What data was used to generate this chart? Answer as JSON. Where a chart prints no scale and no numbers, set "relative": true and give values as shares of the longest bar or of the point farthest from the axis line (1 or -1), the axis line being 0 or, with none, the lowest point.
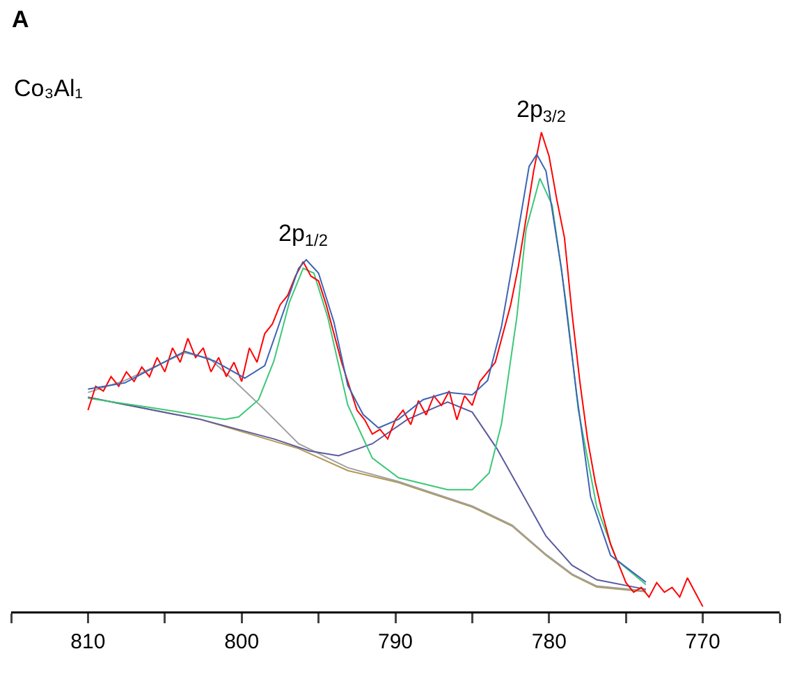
{
  "chart_data": {
    "type": "line",
    "title": "A",
    "relative": true,
    "grid": false,
    "marker": "none",
    "line_style": "solid",
    "xlim": [
      815,
      765
    ],
    "xticks": [
      {
        "value": 815,
        "label": null
      },
      810,
      {
        "value": 805,
        "label": null
      },
      800,
      {
        "value": 795,
        "label": null
      },
      790,
      {
        "value": 785,
        "label": null
      },
      780,
      {
        "value": 775,
        "label": null
      },
      770,
      {
        "value": 765,
        "label": null
      }
    ],
    "annotations": [
      "Co₃Al₁",
      {
        "text": "2p$_{1/2}$",
        "x": 796,
        "y": 0.74
      },
      {
        "text": "2p$_{3/2}$",
        "x": 780.5,
        "y": 1.0
      }
    ],
    "series": [
      {
        "color": "#b09850",
        "x": [
          810,
          802.7,
          796.3,
          793.1,
          789.8,
          785,
          782.4,
          780.2,
          778.5,
          776.9,
          773.7
        ],
        "values": [
          0.447,
          0.401,
          0.34,
          0.294,
          0.269,
          0.218,
          0.178,
          0.117,
          0.076,
          0.051,
          0.041
        ]
      },
      {
        "color": "#a0a0a0",
        "x": [
          810,
          807.6,
          803.7,
          802.1,
          800.5,
          798.5,
          796.3,
          793.1,
          789.8,
          785,
          782.4,
          780.2,
          778.5,
          776.9,
          773.7
        ],
        "values": [
          0.457,
          0.482,
          0.54,
          0.528,
          0.482,
          0.421,
          0.35,
          0.3,
          0.271,
          0.22,
          0.18,
          0.119,
          0.078,
          0.053,
          0.043
        ]
      },
      {
        "color": "#5a5aa0",
        "x": [
          810,
          802.7,
          797.9,
          795.6,
          793.7,
          791.5,
          789.2,
          786.6,
          785,
          783.4,
          781.8,
          780.2,
          778.5,
          776.9,
          773.7
        ],
        "values": [
          0.447,
          0.401,
          0.36,
          0.335,
          0.325,
          0.35,
          0.401,
          0.437,
          0.416,
          0.34,
          0.249,
          0.157,
          0.096,
          0.066,
          0.046
        ]
      },
      {
        "color": "#3cc878",
        "x": [
          810,
          806,
          802.7,
          801.1,
          800.2,
          798.9,
          797.9,
          796.9,
          796,
          795.3,
          794.4,
          793.1,
          791.5,
          789.8,
          786.6,
          785,
          783.9,
          783.1,
          782.1,
          781.5,
          780.6,
          779.8,
          778.9,
          778.1,
          776.9,
          775.6,
          773.7
        ],
        "values": [
          0.445,
          0.426,
          0.409,
          0.401,
          0.406,
          0.442,
          0.523,
          0.645,
          0.716,
          0.706,
          0.614,
          0.431,
          0.32,
          0.279,
          0.254,
          0.254,
          0.289,
          0.391,
          0.614,
          0.797,
          0.904,
          0.848,
          0.645,
          0.421,
          0.218,
          0.107,
          0.056
        ]
      },
      {
        "color": "#ff0000",
        "x": [
          810,
          809.5,
          809,
          808.5,
          808,
          807.5,
          807,
          806.5,
          806,
          805.5,
          805,
          804.5,
          804,
          803.5,
          803,
          802.5,
          802,
          801.5,
          801,
          800.5,
          800,
          799.5,
          799,
          798.5,
          798,
          797.5,
          797,
          796.5,
          796,
          795.5,
          795,
          794.5,
          794,
          793.5,
          793,
          792.5,
          792,
          791.5,
          791,
          790.5,
          790,
          789.5,
          789,
          788.5,
          788,
          787.5,
          787,
          786.5,
          786,
          785.5,
          785,
          784.5,
          784,
          783.5,
          783,
          782.5,
          782,
          781.5,
          781,
          780.5,
          780,
          779.5,
          779,
          778.5,
          778,
          777.5,
          777,
          776.5,
          776,
          775.5,
          775,
          774.5,
          774,
          773.5,
          773,
          772.5,
          772,
          771.5,
          771,
          770.5,
          770
        ],
        "values": [
          0.42,
          0.47,
          0.46,
          0.49,
          0.47,
          0.5,
          0.48,
          0.51,
          0.49,
          0.53,
          0.5,
          0.55,
          0.52,
          0.57,
          0.53,
          0.55,
          0.5,
          0.53,
          0.49,
          0.52,
          0.48,
          0.55,
          0.52,
          0.58,
          0.6,
          0.64,
          0.66,
          0.7,
          0.73,
          0.7,
          0.69,
          0.64,
          0.58,
          0.52,
          0.47,
          0.42,
          0.4,
          0.37,
          0.38,
          0.36,
          0.4,
          0.42,
          0.39,
          0.44,
          0.41,
          0.45,
          0.43,
          0.46,
          0.4,
          0.45,
          0.43,
          0.48,
          0.5,
          0.52,
          0.58,
          0.64,
          0.72,
          0.82,
          0.92,
          1.0,
          0.95,
          0.86,
          0.78,
          0.62,
          0.48,
          0.36,
          0.27,
          0.2,
          0.14,
          0.1,
          0.06,
          0.04,
          0.05,
          0.03,
          0.06,
          0.04,
          0.05,
          0.03,
          0.07,
          0.04,
          0.01
        ]
      },
      {
        "color": "#3c64b4",
        "x": [
          810,
          807.6,
          803.7,
          801.8,
          799.8,
          798.5,
          797.3,
          796.3,
          795.8,
          795,
          794,
          793.1,
          792.1,
          791.1,
          789.8,
          788.2,
          786.6,
          785,
          784,
          783.1,
          782.1,
          781.3,
          780.8,
          780.2,
          779.2,
          778.2,
          777.3,
          776,
          773.7
        ],
        "values": [
          0.464,
          0.477,
          0.543,
          0.523,
          0.487,
          0.513,
          0.624,
          0.716,
          0.734,
          0.706,
          0.604,
          0.472,
          0.411,
          0.383,
          0.401,
          0.442,
          0.457,
          0.452,
          0.482,
          0.594,
          0.777,
          0.929,
          0.954,
          0.919,
          0.716,
          0.452,
          0.239,
          0.117,
          0.061
        ]
      }
    ]
  }
}
